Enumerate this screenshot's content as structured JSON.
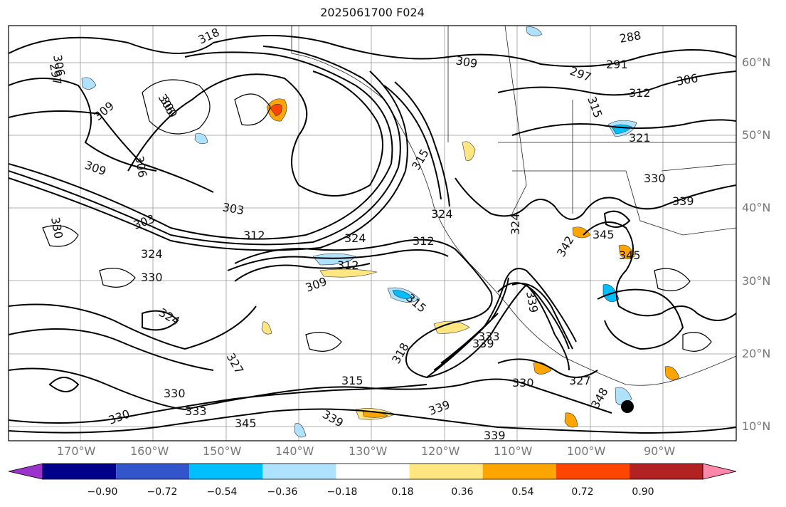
{
  "title": "2025061700 F024",
  "latitude_labels": [
    "60°N",
    "50°N",
    "40°N",
    "30°N",
    "20°N",
    "10°N"
  ],
  "longitude_labels": [
    "170°W",
    "160°W",
    "150°W",
    "140°W",
    "130°W",
    "120°W",
    "110°W",
    "100°W",
    "90°W"
  ],
  "colorbar": {
    "ticks": [
      "−0.90",
      "−0.72",
      "−0.54",
      "−0.36",
      "−0.18",
      "0.18",
      "0.36",
      "0.54",
      "0.72",
      "0.90"
    ],
    "colors": [
      "#9933cc",
      "#00008b",
      "#3355cc",
      "#00bfff",
      "#aee2ff",
      "#ffffff",
      "#ffe680",
      "#ffa500",
      "#ff4500",
      "#b22222",
      "#ff88aa"
    ]
  },
  "contour_labels": [
    "318",
    "306",
    "297",
    "306",
    "309",
    "300",
    "306",
    "309",
    "303",
    "330",
    "303",
    "312",
    "324",
    "330",
    "324",
    "309",
    "312",
    "315",
    "324",
    "312",
    "324",
    "315",
    "309",
    "297",
    "291",
    "288",
    "306",
    "312",
    "315",
    "321",
    "330",
    "339",
    "345",
    "345",
    "342",
    "327",
    "324",
    "339",
    "333",
    "339",
    "318",
    "315",
    "330",
    "327",
    "339",
    "330",
    "333",
    "330",
    "345",
    "339",
    "348",
    "339"
  ],
  "storm_marker": "hurricane-center-dot"
}
